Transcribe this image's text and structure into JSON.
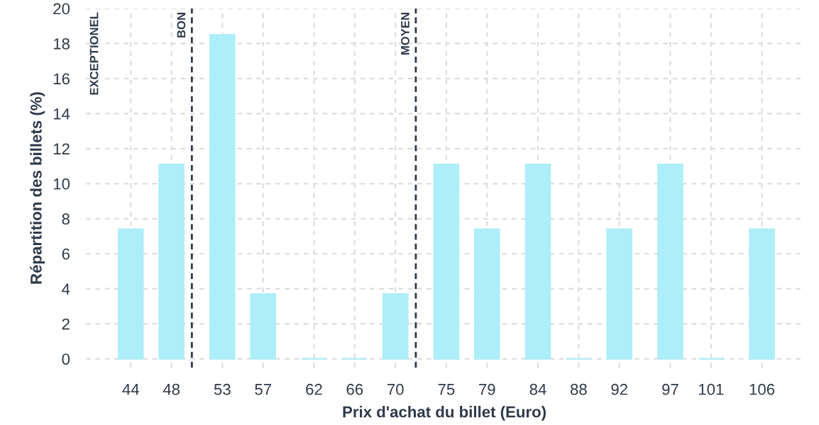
{
  "chart_data": {
    "type": "bar",
    "xlabel": "Prix d'achat du billet (Euro)",
    "ylabel": "Répartition des billets (%)",
    "x": [
      44,
      48,
      53,
      57,
      62,
      66,
      70,
      75,
      79,
      84,
      88,
      92,
      97,
      101,
      106
    ],
    "values": [
      7.4,
      11.1,
      18.5,
      3.7,
      0,
      0,
      3.7,
      11.1,
      7.4,
      11.1,
      0,
      7.4,
      11.1,
      0,
      7.4
    ],
    "color": "#aeeef8",
    "xlim": [
      39.6,
      110
    ],
    "xticks": [
      44,
      48,
      53,
      57,
      62,
      66,
      70,
      75,
      79,
      84,
      88,
      92,
      97,
      101,
      106
    ],
    "ylim": [
      -0.5,
      20
    ],
    "yticks": [
      0,
      2,
      4,
      6,
      8,
      10,
      12,
      14,
      16,
      18,
      20
    ],
    "grid": true,
    "ref_lines": [
      {
        "axis": "x",
        "value": 50,
        "label": "BON",
        "color": "#2d3a4a",
        "line_style": "dashed"
      },
      {
        "axis": "x",
        "value": 72,
        "label": "MOYEN",
        "color": "#2d3a4a",
        "line_style": "dashed"
      }
    ],
    "annotations": [
      "EXCEPTIONEL"
    ]
  }
}
